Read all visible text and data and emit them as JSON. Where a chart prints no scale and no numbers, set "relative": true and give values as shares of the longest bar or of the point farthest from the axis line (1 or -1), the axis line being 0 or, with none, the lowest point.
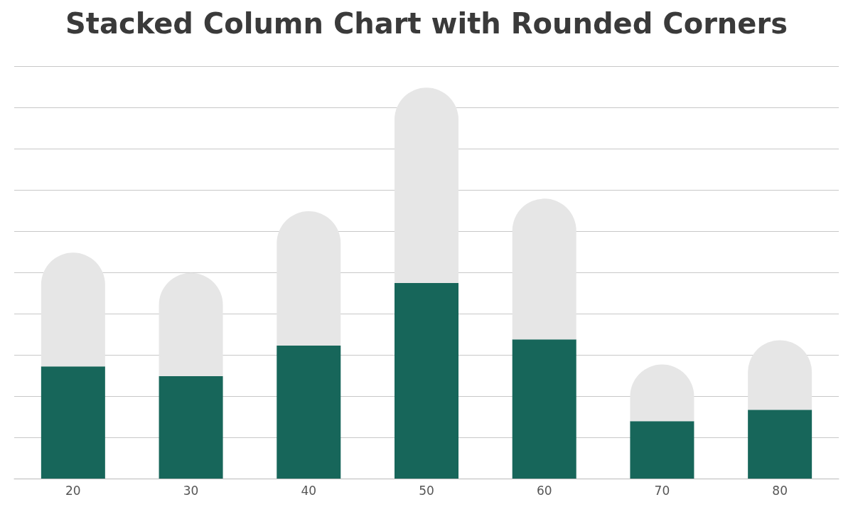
{
  "chart_data": {
    "type": "bar",
    "title": "Stacked Column Chart with Rounded Corners",
    "categories": [
      "20",
      "30",
      "40",
      "50",
      "60",
      "70",
      "80"
    ],
    "stacked": true,
    "relative": true,
    "grid": "y",
    "series": [
      {
        "color": "#17665a",
        "values": [
          0.287,
          0.262,
          0.34,
          0.5,
          0.356,
          0.147,
          0.176
        ]
      },
      {
        "color": "#e6e6e6",
        "values": [
          0.291,
          0.264,
          0.344,
          0.5,
          0.36,
          0.145,
          0.178
        ]
      }
    ]
  }
}
